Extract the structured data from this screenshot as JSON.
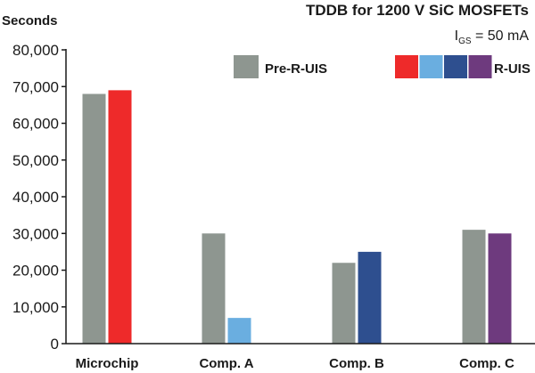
{
  "chart_data": {
    "type": "bar",
    "title": "TDDB for 1200 V SiC MOSFETs",
    "subtitle": {
      "symbol": "I",
      "subscript": "GS",
      "rest": " = 50 mA"
    },
    "ylabel": "Seconds",
    "ylim": [
      0,
      80000
    ],
    "yticks": [
      0,
      10000,
      20000,
      30000,
      40000,
      50000,
      60000,
      70000,
      80000
    ],
    "ytick_labels": [
      "0",
      "10,000",
      "20,000",
      "30,000",
      "40,000",
      "50,000",
      "60,000",
      "70,000",
      "80,000"
    ],
    "categories": [
      "Microchip",
      "Comp. A",
      "Comp. B",
      "Comp. C"
    ],
    "series": [
      {
        "name": "Pre-R-UIS",
        "color": "#8e9690",
        "values": [
          68000,
          30000,
          22000,
          31000
        ]
      },
      {
        "name": "R-UIS",
        "colors": [
          "#ee2a2a",
          "#6aaee0",
          "#2e4f8f",
          "#6e3a7e"
        ],
        "values": [
          69000,
          7000,
          25000,
          30000
        ]
      }
    ],
    "legend_position": "top-right",
    "grid": false
  }
}
